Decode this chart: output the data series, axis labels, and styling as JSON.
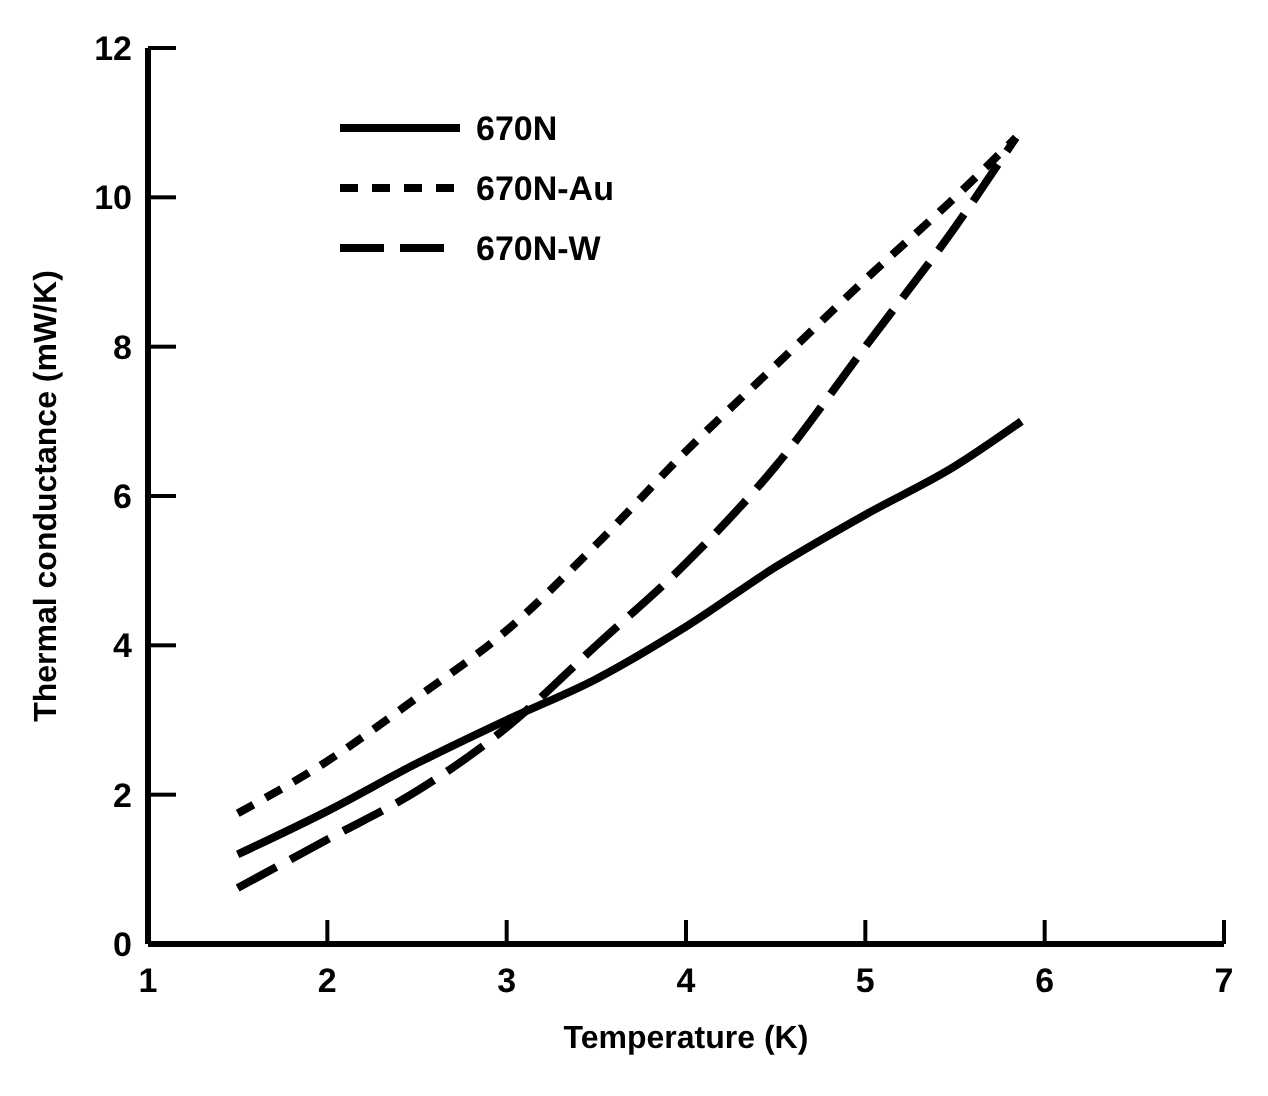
{
  "chart_data": {
    "type": "line",
    "xlabel": "Temperature (K)",
    "ylabel": "Thermal conductance (mW/K)",
    "xlim": [
      1,
      7
    ],
    "xticks": [
      1,
      2,
      3,
      4,
      5,
      6,
      7
    ],
    "ylim": [
      0,
      12
    ],
    "yticks": [
      0,
      2,
      4,
      6,
      8,
      10,
      12
    ],
    "legend": "top left",
    "grid": false,
    "series": [
      {
        "name": "670N",
        "color": "#000000",
        "line_style": "solid",
        "x": [
          1.5,
          2,
          2.5,
          3,
          3.5,
          4,
          4.5,
          5,
          5.5,
          5.87
        ],
        "values": [
          1.2,
          1.78,
          2.42,
          3.0,
          3.55,
          4.25,
          5.05,
          5.75,
          6.4,
          7.0
        ]
      },
      {
        "name": "670N-Au",
        "color": "#000000",
        "line_style": "dotted",
        "x": [
          1.5,
          2,
          2.5,
          3,
          3.5,
          4,
          4.5,
          5,
          5.5,
          5.84
        ],
        "values": [
          1.75,
          2.45,
          3.3,
          4.2,
          5.35,
          6.6,
          7.75,
          8.9,
          10.0,
          10.8
        ]
      },
      {
        "name": "670N-W",
        "color": "#000000",
        "line_style": "dashed",
        "x": [
          1.5,
          2,
          2.5,
          3,
          3.5,
          4,
          4.5,
          5,
          5.5,
          5.84
        ],
        "values": [
          0.75,
          1.4,
          2.05,
          2.9,
          4.0,
          5.1,
          6.4,
          8.0,
          9.6,
          10.8
        ]
      }
    ]
  }
}
